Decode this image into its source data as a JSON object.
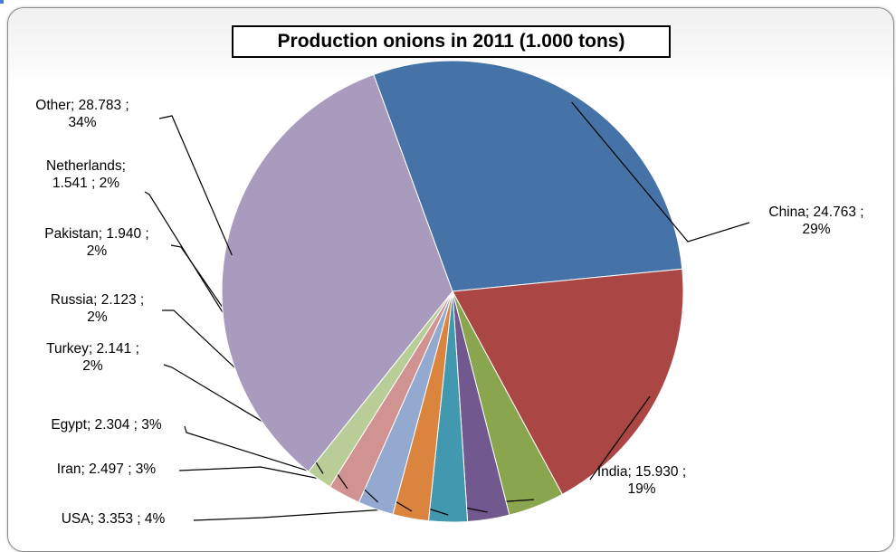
{
  "chart_data": {
    "type": "pie",
    "title": "Production onions in 2011 (1.000 tons)",
    "slices": [
      {
        "name": "China",
        "value": 24763,
        "label_text": "China;  24.763 ;\n29%",
        "color": "#4572A7"
      },
      {
        "name": "India",
        "value": 15930,
        "label_text": "India;  15.930 ;\n19%",
        "color": "#AA4643"
      },
      {
        "name": "USA",
        "value": 3353,
        "label_text": "USA;  3.353 ; 4%",
        "color": "#89A54E"
      },
      {
        "name": "Iran",
        "value": 2497,
        "label_text": "Iran;  2.497 ; 3%",
        "color": "#71588F"
      },
      {
        "name": "Egypt",
        "value": 2304,
        "label_text": "Egypt;  2.304 ; 3%",
        "color": "#4198AF"
      },
      {
        "name": "Turkey",
        "value": 2141,
        "label_text": "Turkey;  2.141 ;\n2%",
        "color": "#DB843D"
      },
      {
        "name": "Russia",
        "value": 2123,
        "label_text": "Russia;  2.123 ;\n2%",
        "color": "#93A9CF"
      },
      {
        "name": "Pakistan",
        "value": 1940,
        "label_text": "Pakistan;  1.940 ;\n2%",
        "color": "#D19392"
      },
      {
        "name": "Netherlands",
        "value": 1541,
        "label_text": "Netherlands;\n1.541 ; 2%",
        "color": "#B9CD96"
      },
      {
        "name": "Other",
        "value": 28783,
        "label_text": "Other;  28.783 ;\n34%",
        "color": "#A99BBD"
      }
    ]
  }
}
